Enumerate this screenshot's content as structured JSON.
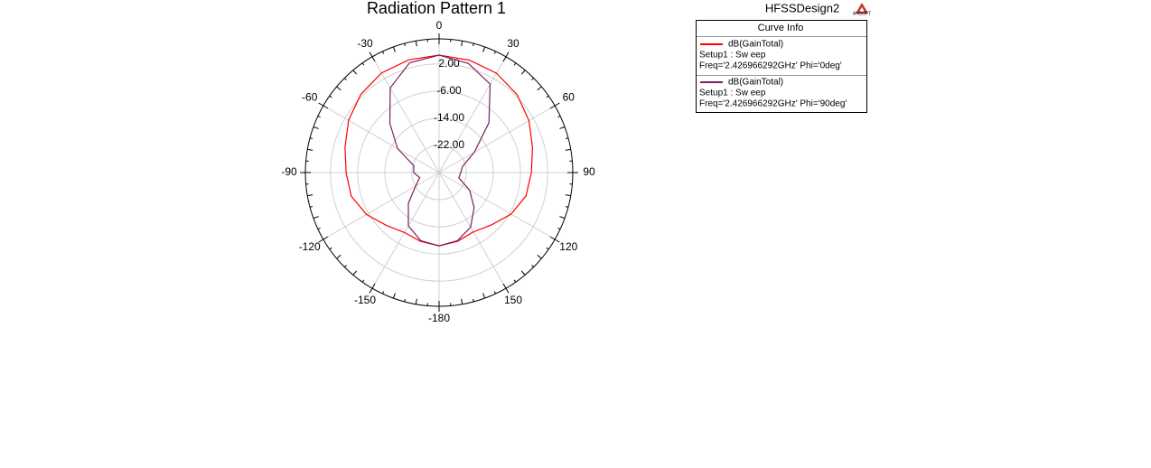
{
  "chart_data": {
    "type": "polar",
    "title": "Radiation Pattern 1",
    "design_name": "HFSSDesign2",
    "logo_text": "ANSOFT",
    "legend_title": "Curve Info",
    "x": [
      -165,
      -150,
      -135,
      -120,
      -105,
      -90,
      -75,
      -60,
      -45,
      -30,
      -15,
      0,
      15,
      30,
      45,
      60,
      75,
      90,
      105,
      120,
      135,
      150,
      165,
      180
    ],
    "series": [
      {
        "name": "dB(GainTotal)",
        "setup": "Setup1 : Sw eep",
        "freq": "Freq='2.426966292GHz' Phi='0deg'",
        "color": "#ff0000",
        "values": [
          -9.0,
          -9.6,
          -8.0,
          -5.3,
          -3.2,
          -2.6,
          -1.3,
          0.8,
          2.6,
          3.9,
          4.4,
          4.6,
          4.3,
          3.8,
          2.5,
          0.6,
          -1.5,
          -2.8,
          -3.5,
          -5.5,
          -8.2,
          -9.8,
          -9.0,
          -8.4
        ]
      },
      {
        "name": "dB(GainTotal)",
        "setup": "Setup1 : Sw eep",
        "freq": "Freq='2.426966292GHz' Phi='90deg'",
        "color": "#7b1f5f",
        "values": [
          -9.2,
          -11.9,
          -17.2,
          -22.0,
          -24.1,
          -22.5,
          -22.3,
          -15.9,
          -9.5,
          -1.2,
          3.5,
          4.6,
          3.3,
          0.1,
          -9.2,
          -18.0,
          -22.8,
          -23.6,
          -24.0,
          -19.6,
          -15.4,
          -11.4,
          -9.2,
          -8.4
        ]
      }
    ],
    "xticks": [
      0,
      30,
      60,
      90,
      120,
      150,
      -180,
      -150,
      -120,
      -90,
      -60,
      -30
    ],
    "ylim": [
      -30,
      9.4
    ],
    "yticks": [
      {
        "value": 2,
        "label": "2.00"
      },
      {
        "value": -6,
        "label": "-6.00"
      },
      {
        "value": -14,
        "label": "-14.00"
      },
      {
        "value": -22,
        "label": "-22.00"
      }
    ],
    "grid": true
  }
}
